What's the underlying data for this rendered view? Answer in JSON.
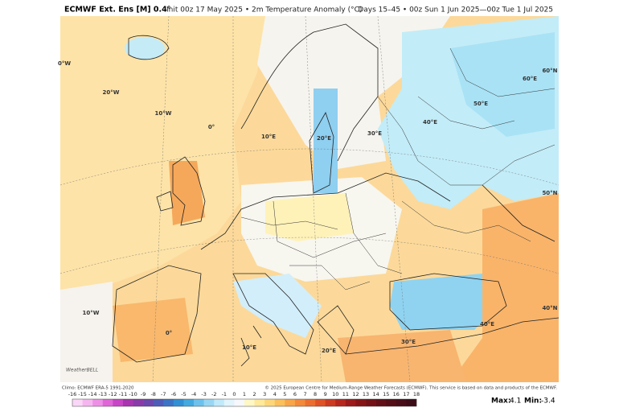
{
  "header": {
    "model": "ECMWF Ext. Ens [M] 0.4°",
    "init": "Init 00z 17 May 2025 • 2m Temperature Anomaly (°C)",
    "valid": "Days 15–45 • 00z Sun 1 Jun 2025—00z Tue 1 Jul 2025"
  },
  "map_labels": [
    "0°W",
    "20°W",
    "10°W",
    "0°",
    "10°E",
    "20°E",
    "30°E",
    "40°E",
    "50°E",
    "60°E",
    "60°N",
    "50°N",
    "40°N",
    "10°W",
    "0°",
    "10°E",
    "20°E",
    "30°E",
    "40°E"
  ],
  "footer": {
    "climo": "Climo: ECMWF ERA-5 1991-2020",
    "copyright": "© 2025 European Centre for Medium-Range Weather Forecasts (ECMWF). This service is based on data and products of the ECMWF.",
    "logo": "WeatherBELL"
  },
  "colorbar": {
    "ticks": [
      -16,
      -15,
      -14,
      -13,
      -12,
      -11,
      -10,
      -9,
      -8,
      -7,
      -6,
      -5,
      -4,
      -3,
      -2,
      -1,
      0,
      1,
      2,
      3,
      4,
      5,
      6,
      7,
      8,
      9,
      10,
      11,
      12,
      13,
      14,
      15,
      16,
      17,
      18
    ],
    "colors": [
      "#fbd7f7",
      "#f5b6f0",
      "#ee8fe6",
      "#e066d8",
      "#c844c6",
      "#a834b0",
      "#8a3aa8",
      "#6c47ad",
      "#4e5cb8",
      "#3b74c6",
      "#3190d4",
      "#43aae0",
      "#6cc2ec",
      "#97d7f4",
      "#c0e9fa",
      "#e2f4fc",
      "#f7f8fb",
      "#fff7c4",
      "#ffe99a",
      "#fdd679",
      "#fbbf5c",
      "#f8a548",
      "#f38a3a",
      "#ec6e2f",
      "#df5226",
      "#cc3a21",
      "#b5271d",
      "#9c1a1a",
      "#861417",
      "#731116",
      "#620f17",
      "#540e18",
      "#480d19",
      "#3d0c18"
    ]
  },
  "stats": {
    "max_label": "Max:",
    "max": 4.1,
    "min_label": "Min:",
    "min": -3.4
  }
}
